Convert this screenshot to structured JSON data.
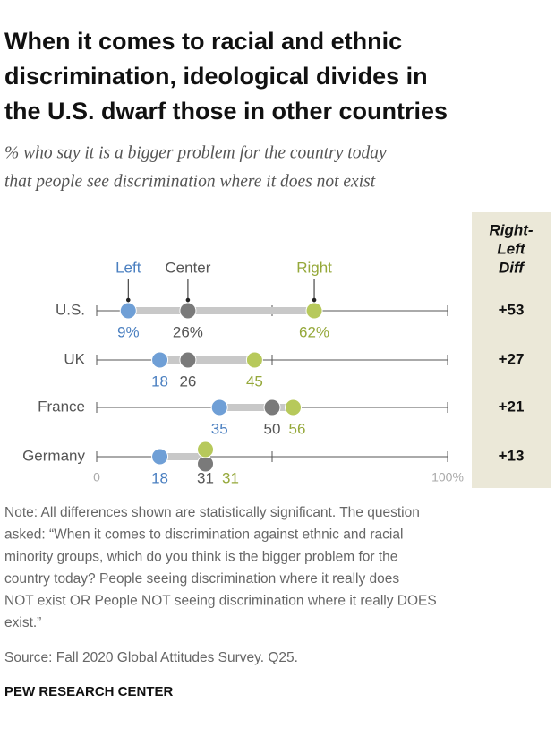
{
  "title": [
    "When it comes to racial and ethnic",
    "discrimination, ideological divides in",
    "the U.S. dwarf those in other countries"
  ],
  "subtitle": [
    "% who say it is a bigger problem for the country today",
    "that people see discrimination where it does not exist"
  ],
  "chart_data": {
    "type": "dot",
    "categories": [
      "U.S.",
      "UK",
      "France",
      "Germany"
    ],
    "series": [
      {
        "name": "Left",
        "color": "#6f9fd6",
        "values": [
          9,
          18,
          35,
          18
        ],
        "value_labels": [
          "9%",
          "18",
          "35",
          "18"
        ]
      },
      {
        "name": "Center",
        "color": "#7a7a7a",
        "values": [
          26,
          26,
          50,
          31
        ],
        "value_labels": [
          "26%",
          "26",
          "50",
          "31"
        ]
      },
      {
        "name": "Right",
        "color": "#b7c95b",
        "values": [
          62,
          45,
          56,
          31
        ],
        "value_labels": [
          "62%",
          "45",
          "56",
          "31"
        ]
      }
    ],
    "xlim": [
      0,
      100
    ],
    "xticks": [
      0,
      {
        "value": 100,
        "label": "100%"
      }
    ],
    "minor_xticks": [
      50
    ],
    "diff": {
      "title": [
        "Right-",
        "Left",
        "Diff"
      ],
      "values": [
        53,
        27,
        21,
        13
      ],
      "value_labels": [
        "+53",
        "+27",
        "+21",
        "+13"
      ]
    }
  },
  "note": [
    "Note: All differences shown are statistically significant. The question",
    "asked: “When it comes to discrimination against ethnic and racial",
    "minority groups, which do you think is the bigger problem for the",
    "country today? People seeing discrimination where it really does",
    "NOT exist OR People NOT seeing discrimination where it really DOES",
    "exist.”"
  ],
  "source": "Source: Fall 2020 Global Attitudes Survey. Q25.",
  "brand": "PEW RESEARCH CENTER"
}
